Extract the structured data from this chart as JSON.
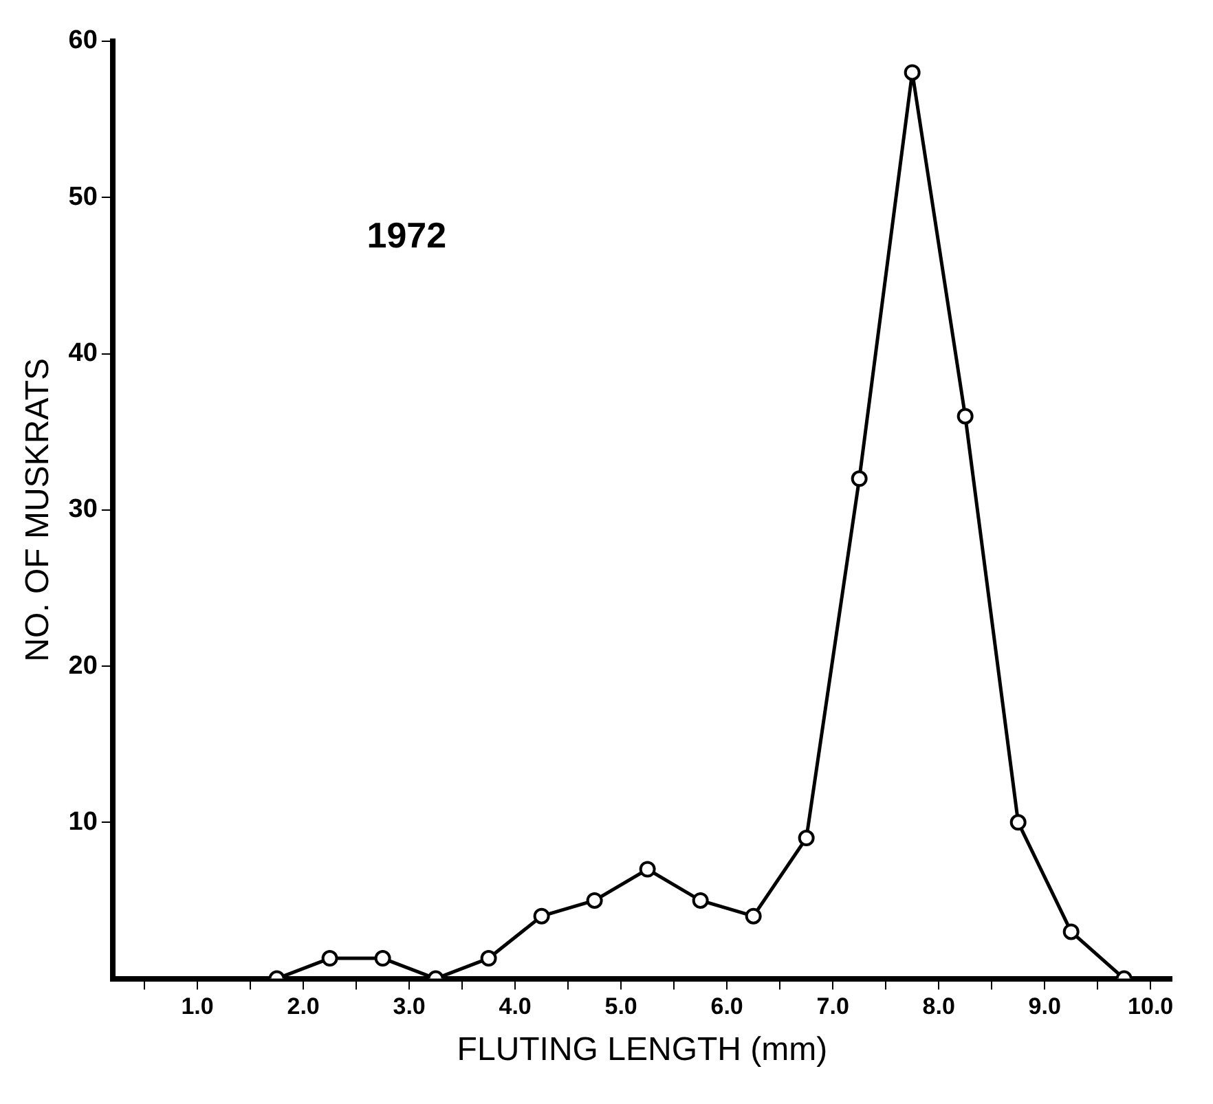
{
  "chart_data": {
    "type": "line",
    "xlabel": "FLUTING LENGTH (mm)",
    "ylabel": "NO. OF MUSKRATS",
    "annotations": [
      "1972"
    ],
    "x": [
      1.75,
      2.25,
      2.75,
      3.25,
      3.75,
      4.25,
      4.75,
      5.25,
      5.75,
      6.25,
      6.75,
      7.25,
      7.75,
      8.25,
      8.75,
      9.25,
      9.75
    ],
    "values": [
      0,
      1.3,
      1.3,
      0,
      1.3,
      4,
      5,
      7,
      5,
      4,
      9,
      32,
      58,
      36,
      10,
      3,
      0
    ],
    "color": "#000000",
    "marker": "circle",
    "line_style": "solid",
    "grid": false,
    "legend": false,
    "xlim": [
      0.2,
      10.2
    ],
    "ylim": [
      0,
      60
    ],
    "xticks": [
      {
        "value": 0.5,
        "label": null
      },
      {
        "value": 1,
        "label": "1.0"
      },
      {
        "value": 1.5,
        "label": null
      },
      {
        "value": 2,
        "label": "2.0"
      },
      {
        "value": 2.5,
        "label": null
      },
      {
        "value": 3,
        "label": "3.0"
      },
      {
        "value": 3.5,
        "label": null
      },
      {
        "value": 4,
        "label": "4.0"
      },
      {
        "value": 4.5,
        "label": null
      },
      {
        "value": 5,
        "label": "5.0"
      },
      {
        "value": 5.5,
        "label": null
      },
      {
        "value": 6,
        "label": "6.0"
      },
      {
        "value": 6.5,
        "label": null
      },
      {
        "value": 7,
        "label": "7.0"
      },
      {
        "value": 7.5,
        "label": null
      },
      {
        "value": 8,
        "label": "8.0"
      },
      {
        "value": 8.5,
        "label": null
      },
      {
        "value": 9,
        "label": "9.0"
      },
      {
        "value": 9.5,
        "label": null
      },
      {
        "value": 10,
        "label": "10.0"
      }
    ],
    "yticks": [
      10,
      20,
      30,
      40,
      50,
      60
    ]
  }
}
